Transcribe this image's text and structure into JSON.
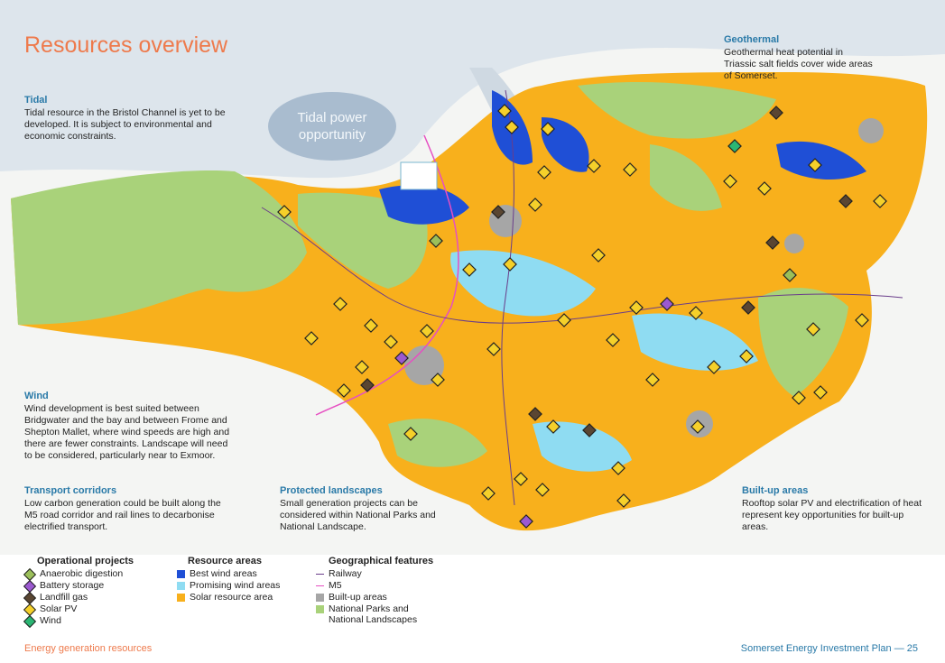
{
  "title": "Resources overview",
  "tidal_bubble": "Tidal power opportunity",
  "callouts": {
    "tidal": {
      "heading": "Tidal",
      "body": "Tidal resource in the Bristol Channel is yet to be developed. It is subject to environmental and economic constraints."
    },
    "geothermal": {
      "heading": "Geothermal",
      "body": "Geothermal heat potential in Triassic salt fields cover wide areas of Somerset."
    },
    "wind": {
      "heading": "Wind",
      "body": "Wind development is best suited between Bridgwater and the bay and between Frome and Shepton Mallet, where wind speeds are high and there are fewer constraints. Landscape will need to be considered, particularly near to Exmoor."
    },
    "transport": {
      "heading": "Transport corridors",
      "body": "Low carbon generation could be built along the M5 road corridor and rail lines to decarbonise electrified transport."
    },
    "protected": {
      "heading": "Protected landscapes",
      "body": "Small generation projects can be considered within National Parks and National Landscape."
    },
    "builtup": {
      "heading": "Built-up areas",
      "body": "Rooftop solar PV and electrification of heat represent key opportunities for built-up areas."
    }
  },
  "legend": {
    "operational": {
      "heading": "Operational projects",
      "items": [
        {
          "label": "Anaerobic digestion",
          "color": "#9bbf5a"
        },
        {
          "label": "Battery storage",
          "color": "#9b59d0"
        },
        {
          "label": "Landfill gas",
          "color": "#5a4632"
        },
        {
          "label": "Solar PV",
          "color": "#f5d02a"
        },
        {
          "label": "Wind",
          "color": "#2bb673"
        }
      ]
    },
    "resource": {
      "heading": "Resource areas",
      "items": [
        {
          "label": "Best wind areas",
          "color": "#1f4fd6"
        },
        {
          "label": "Promising wind areas",
          "color": "#8fdcf2"
        },
        {
          "label": "Solar resource area",
          "color": "#f8b01c"
        }
      ]
    },
    "geographical": {
      "heading": "Geographical features",
      "items": [
        {
          "label": "Railway",
          "color": "#6a3d8a",
          "kind": "line"
        },
        {
          "label": "M5",
          "color": "#e64fc2",
          "kind": "line"
        },
        {
          "label": "Built-up areas",
          "color": "#a6a6a6",
          "kind": "box"
        },
        {
          "label": "National Parks and National Landscapes",
          "color": "#a9d27a",
          "kind": "box"
        }
      ]
    }
  },
  "footer": {
    "left": "Energy generation resources",
    "right": "Somerset Energy Investment Plan — 25"
  }
}
